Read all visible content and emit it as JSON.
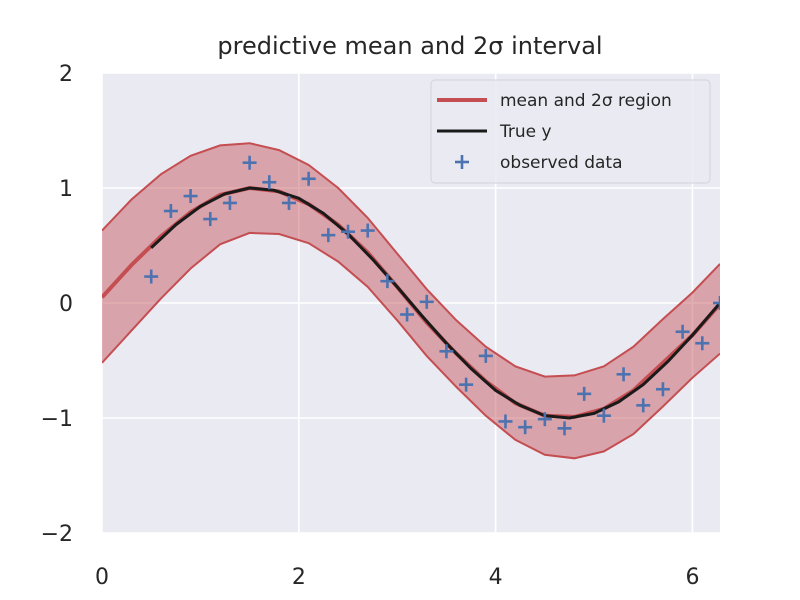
{
  "chart_data": {
    "type": "line",
    "title": "predictive mean and 2σ interval",
    "xlabel": "",
    "ylabel": "",
    "xlim": [
      0,
      6.28
    ],
    "ylim": [
      -2,
      2
    ],
    "xticks": [
      0,
      2,
      4,
      6
    ],
    "yticks": [
      -2,
      -1,
      0,
      1,
      2
    ],
    "xtick_labels": [
      "0",
      "2",
      "4",
      "6"
    ],
    "ytick_labels": [
      "−2",
      "−1",
      "0",
      "1",
      "2"
    ],
    "grid": true,
    "legend_position": "top-right",
    "legend": [
      "mean and 2σ region",
      "True y",
      "observed data"
    ],
    "colors": {
      "mean": "#c44e52",
      "band_fill": "#c44e52",
      "true": "#1a1a1a",
      "points": "#4c72b0",
      "background": "#eaeaf2",
      "grid": "#ffffff"
    },
    "series": [
      {
        "name": "mean and 2σ region",
        "x": [
          0.0,
          0.3,
          0.6,
          0.9,
          1.2,
          1.5,
          1.8,
          2.1,
          2.4,
          2.7,
          3.0,
          3.3,
          3.6,
          3.9,
          4.2,
          4.5,
          4.8,
          5.1,
          5.4,
          5.7,
          6.0,
          6.28
        ],
        "mean": [
          0.05,
          0.33,
          0.58,
          0.79,
          0.94,
          1.0,
          0.97,
          0.86,
          0.68,
          0.44,
          0.14,
          -0.17,
          -0.44,
          -0.68,
          -0.87,
          -0.98,
          -0.99,
          -0.92,
          -0.76,
          -0.52,
          -0.28,
          -0.01
        ],
        "upper": [
          0.63,
          0.9,
          1.12,
          1.28,
          1.37,
          1.39,
          1.33,
          1.2,
          1.0,
          0.74,
          0.43,
          0.12,
          -0.15,
          -0.38,
          -0.55,
          -0.64,
          -0.63,
          -0.55,
          -0.38,
          -0.14,
          0.09,
          0.34
        ],
        "lower": [
          -0.52,
          -0.24,
          0.04,
          0.3,
          0.51,
          0.61,
          0.6,
          0.52,
          0.36,
          0.14,
          -0.15,
          -0.46,
          -0.73,
          -0.98,
          -1.19,
          -1.32,
          -1.35,
          -1.29,
          -1.14,
          -0.9,
          -0.65,
          -0.44
        ]
      },
      {
        "name": "True y",
        "x": [
          0.5,
          0.75,
          1.0,
          1.25,
          1.5,
          1.75,
          2.0,
          2.25,
          2.5,
          2.75,
          3.0,
          3.25,
          3.5,
          3.75,
          4.0,
          4.25,
          4.5,
          4.75,
          5.0,
          5.25,
          5.5,
          5.75,
          6.0,
          6.28
        ],
        "y": [
          0.48,
          0.68,
          0.84,
          0.95,
          1.0,
          0.98,
          0.91,
          0.78,
          0.6,
          0.38,
          0.14,
          -0.11,
          -0.35,
          -0.57,
          -0.76,
          -0.89,
          -0.98,
          -1.0,
          -0.96,
          -0.86,
          -0.71,
          -0.51,
          -0.28,
          -0.0
        ]
      },
      {
        "name": "observed data",
        "x": [
          0.5,
          0.7,
          0.9,
          1.1,
          1.3,
          1.5,
          1.7,
          1.9,
          2.1,
          2.3,
          2.5,
          2.7,
          2.9,
          3.1,
          3.3,
          3.5,
          3.7,
          3.9,
          4.1,
          4.3,
          4.5,
          4.7,
          4.9,
          5.1,
          5.3,
          5.5,
          5.7,
          5.9,
          6.1,
          6.28
        ],
        "y": [
          0.23,
          0.8,
          0.93,
          0.73,
          0.87,
          1.22,
          1.05,
          0.87,
          1.08,
          0.59,
          0.62,
          0.63,
          0.19,
          -0.1,
          0.01,
          -0.42,
          -0.71,
          -0.46,
          -1.03,
          -1.08,
          -1.01,
          -1.09,
          -0.79,
          -0.98,
          -0.62,
          -0.89,
          -0.75,
          -0.25,
          -0.35,
          0.0
        ]
      }
    ]
  }
}
